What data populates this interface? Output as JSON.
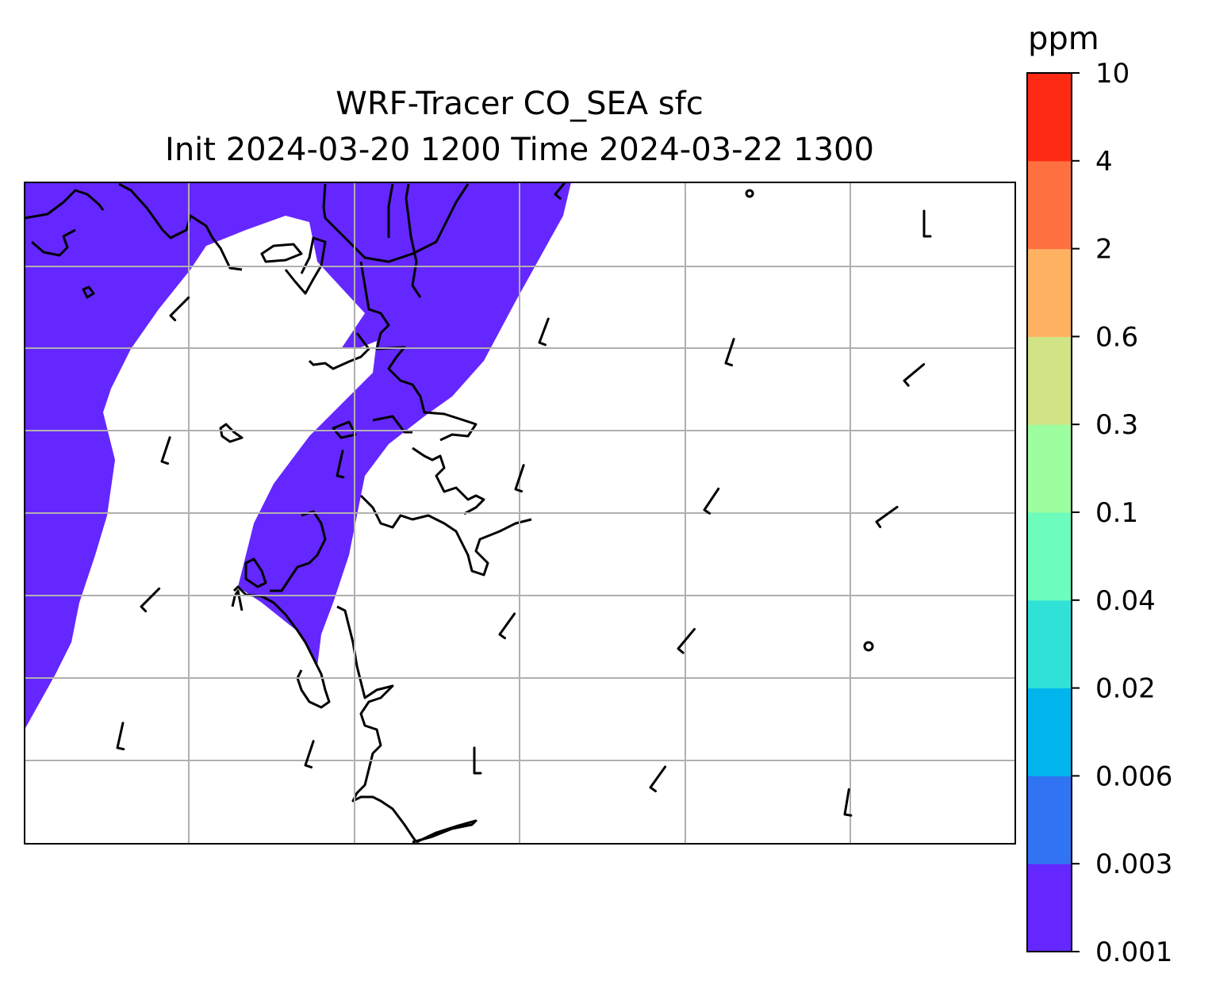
{
  "title": {
    "line1": "WRF-Tracer CO_SEA sfc",
    "line2": "Init 2024-03-20 1200 Time 2024-03-22 1300"
  },
  "colorbar": {
    "unit": "ppm",
    "ticks": [
      "0.001",
      "0.003",
      "0.006",
      "0.02",
      "0.04",
      "0.1",
      "0.3",
      "0.6",
      "2",
      "4",
      "10"
    ],
    "colors": [
      "#6427ff",
      "#3174f3",
      "#00b4ec",
      "#30e1d8",
      "#6cfcbb",
      "#9dfea0",
      "#d0e385",
      "#feb161",
      "#ff7040",
      "#ff2a14"
    ]
  },
  "map": {
    "tracer_fill_color": "#6527ff",
    "coastline_color": "#000000",
    "gridline_color": "#b0b0b0",
    "wind_barbs": [
      {
        "id": 1,
        "u": -5,
        "v": -5
      },
      {
        "id": 2,
        "u": -3,
        "v": -9
      },
      {
        "id": 3,
        "u": -7,
        "v": -7
      },
      {
        "id": 4,
        "u": -2,
        "v": -9
      },
      {
        "id": 5,
        "u": -2,
        "v": -9
      },
      {
        "id": 6,
        "u": -3,
        "v": -9
      },
      {
        "id": 7,
        "u": -3,
        "v": -8
      },
      {
        "id": 8,
        "u": -3,
        "v": -9
      },
      {
        "id": 9,
        "u": -5,
        "v": -7
      },
      {
        "id": 10,
        "u": 0,
        "v": -8
      },
      {
        "id": 11,
        "u": -5,
        "v": -6
      },
      {
        "id": 12,
        "u": -2,
        "v": -6
      },
      {
        "id": 13,
        "u": -4,
        "v": -6
      },
      {
        "id": 14,
        "u": -5,
        "v": -6
      },
      {
        "id": 15,
        "u": -5,
        "v": -7
      },
      {
        "id": 16,
        "u": 0,
        "v": -6
      },
      {
        "id": 17,
        "u": -6,
        "v": -5
      },
      {
        "id": 18,
        "u": -7,
        "v": -5
      },
      {
        "id": 19,
        "u": -1,
        "v": -6
      }
    ],
    "calm_markers": 2
  }
}
